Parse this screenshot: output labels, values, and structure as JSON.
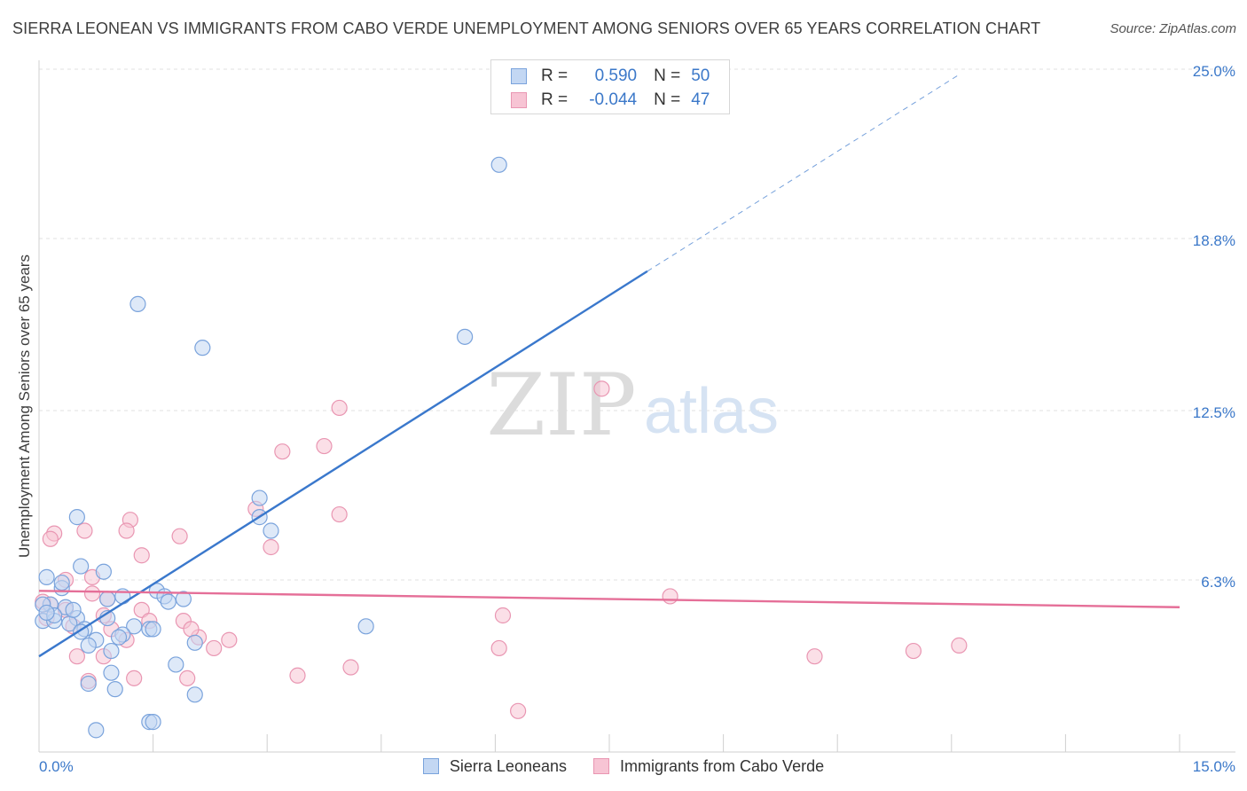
{
  "header": {
    "title": "SIERRA LEONEAN VS IMMIGRANTS FROM CABO VERDE UNEMPLOYMENT AMONG SENIORS OVER 65 YEARS CORRELATION CHART",
    "source": "Source: ZipAtlas.com"
  },
  "watermark": {
    "zip": "ZIP",
    "atlas": "atlas"
  },
  "legend": {
    "r_label": "R =",
    "n_label": "N =",
    "series": [
      {
        "name": "Sierra Leoneans",
        "r": "0.590",
        "n": "50"
      },
      {
        "name": "Immigrants from Cabo Verde",
        "r": "-0.044",
        "n": "47"
      }
    ]
  },
  "colors": {
    "blue_fill": "#c3d7f3",
    "blue_stroke": "#7aa3dc",
    "blue_line": "#3a78cc",
    "pink_fill": "#f7c4d4",
    "pink_stroke": "#e996b2",
    "pink_line": "#e56f98",
    "grid": "#e2e2e2",
    "tick_label": "#3b78c9"
  },
  "chart_data": {
    "type": "scatter",
    "title": "SIERRA LEONEAN VS IMMIGRANTS FROM CABO VERDE UNEMPLOYMENT AMONG SENIORS OVER 65 YEARS CORRELATION CHART",
    "xlabel": "",
    "ylabel": "Unemployment Among Seniors over 65 years",
    "xlim": [
      0,
      15
    ],
    "ylim": [
      0,
      25
    ],
    "x_tick_labels": [
      "0.0%",
      "15.0%"
    ],
    "y_ticks": [
      6.3,
      12.5,
      18.8,
      25.0
    ],
    "y_tick_labels": [
      "6.3%",
      "12.5%",
      "18.8%",
      "25.0%"
    ],
    "series": [
      {
        "name": "Sierra Leoneans",
        "color": "#7aa3dc",
        "points": [
          [
            6.05,
            21.5
          ],
          [
            1.3,
            16.4
          ],
          [
            2.15,
            14.8
          ],
          [
            5.6,
            15.2
          ],
          [
            2.9,
            9.3
          ],
          [
            2.9,
            8.6
          ],
          [
            3.05,
            8.1
          ],
          [
            0.5,
            8.6
          ],
          [
            0.55,
            6.8
          ],
          [
            0.85,
            6.6
          ],
          [
            0.1,
            6.4
          ],
          [
            0.3,
            6.0
          ],
          [
            0.15,
            5.4
          ],
          [
            0.35,
            5.3
          ],
          [
            0.05,
            5.4
          ],
          [
            0.5,
            4.9
          ],
          [
            0.05,
            4.8
          ],
          [
            0.2,
            4.8
          ],
          [
            0.4,
            4.7
          ],
          [
            0.6,
            4.5
          ],
          [
            0.9,
            4.9
          ],
          [
            1.1,
            5.7
          ],
          [
            0.9,
            5.6
          ],
          [
            1.55,
            5.9
          ],
          [
            1.65,
            5.7
          ],
          [
            1.7,
            5.5
          ],
          [
            1.9,
            5.6
          ],
          [
            1.25,
            4.6
          ],
          [
            1.45,
            4.5
          ],
          [
            1.5,
            4.5
          ],
          [
            1.1,
            4.3
          ],
          [
            1.05,
            4.2
          ],
          [
            0.55,
            4.4
          ],
          [
            0.75,
            4.1
          ],
          [
            0.65,
            3.9
          ],
          [
            0.95,
            3.7
          ],
          [
            2.05,
            4.0
          ],
          [
            1.8,
            3.2
          ],
          [
            4.3,
            4.6
          ],
          [
            0.95,
            2.9
          ],
          [
            0.65,
            2.5
          ],
          [
            1.0,
            2.3
          ],
          [
            2.05,
            2.1
          ],
          [
            1.45,
            1.1
          ],
          [
            1.5,
            1.1
          ],
          [
            0.75,
            0.8
          ],
          [
            0.3,
            6.2
          ],
          [
            0.2,
            5.0
          ],
          [
            0.45,
            5.2
          ],
          [
            0.1,
            5.1
          ]
        ]
      },
      {
        "name": "Immigrants from Cabo Verde",
        "color": "#e996b2",
        "points": [
          [
            7.4,
            13.3
          ],
          [
            3.95,
            12.6
          ],
          [
            3.75,
            11.2
          ],
          [
            3.2,
            11.0
          ],
          [
            3.95,
            8.7
          ],
          [
            2.85,
            8.9
          ],
          [
            1.2,
            8.5
          ],
          [
            1.15,
            8.1
          ],
          [
            0.6,
            8.1
          ],
          [
            0.2,
            8.0
          ],
          [
            0.15,
            7.8
          ],
          [
            1.85,
            7.9
          ],
          [
            3.05,
            7.5
          ],
          [
            1.35,
            7.2
          ],
          [
            0.7,
            6.4
          ],
          [
            0.35,
            6.3
          ],
          [
            0.7,
            5.8
          ],
          [
            0.9,
            5.6
          ],
          [
            0.15,
            5.4
          ],
          [
            0.35,
            5.2
          ],
          [
            0.85,
            5.0
          ],
          [
            1.35,
            5.2
          ],
          [
            1.45,
            4.8
          ],
          [
            1.9,
            4.8
          ],
          [
            0.1,
            4.9
          ],
          [
            0.45,
            4.6
          ],
          [
            0.95,
            4.5
          ],
          [
            1.15,
            4.1
          ],
          [
            2.1,
            4.2
          ],
          [
            2.0,
            4.5
          ],
          [
            2.5,
            4.1
          ],
          [
            2.3,
            3.8
          ],
          [
            0.5,
            3.5
          ],
          [
            0.85,
            3.5
          ],
          [
            6.1,
            5.0
          ],
          [
            6.05,
            3.8
          ],
          [
            8.3,
            5.7
          ],
          [
            10.2,
            3.5
          ],
          [
            11.5,
            3.7
          ],
          [
            12.1,
            3.9
          ],
          [
            3.4,
            2.8
          ],
          [
            4.1,
            3.1
          ],
          [
            1.25,
            2.7
          ],
          [
            0.65,
            2.6
          ],
          [
            1.95,
            2.7
          ],
          [
            6.3,
            1.5
          ],
          [
            0.05,
            5.5
          ]
        ]
      }
    ],
    "trend_lines": [
      {
        "series": "Sierra Leoneans",
        "x": [
          0,
          8.0
        ],
        "y": [
          3.5,
          17.6
        ],
        "dashed_extension_to": [
          12.1,
          24.8
        ]
      },
      {
        "series": "Immigrants from Cabo Verde",
        "x": [
          0,
          15.0
        ],
        "y": [
          5.9,
          5.3
        ]
      }
    ]
  }
}
